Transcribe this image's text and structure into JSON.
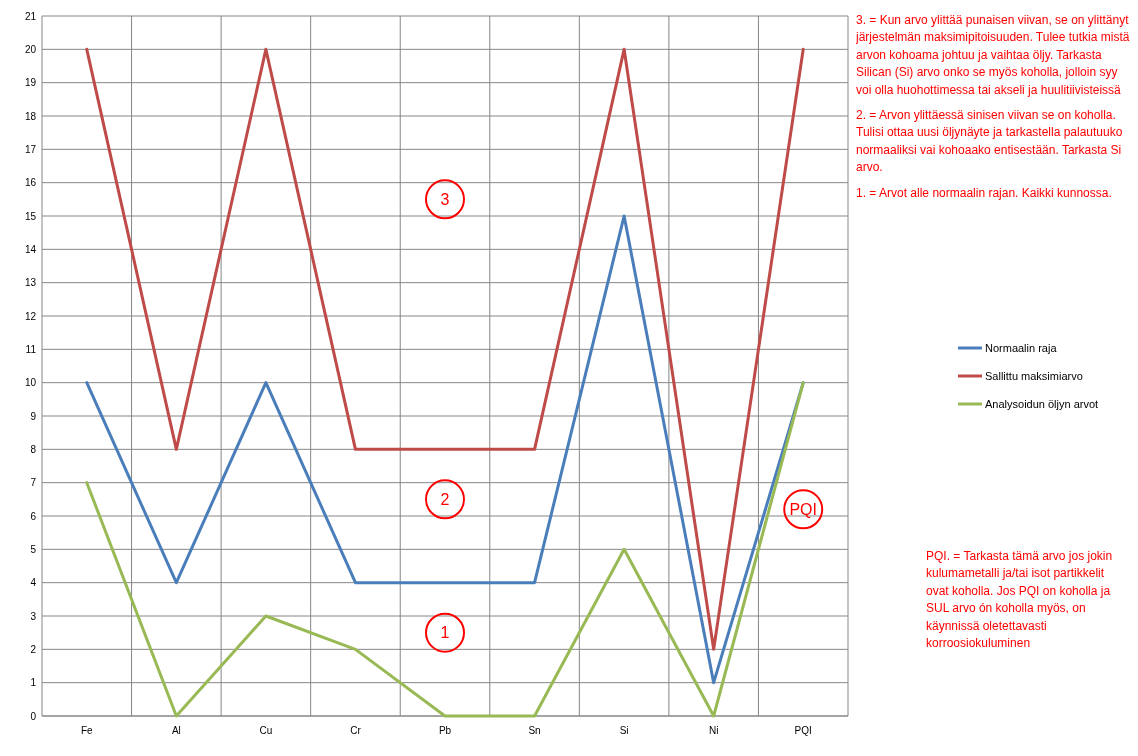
{
  "chart_data": {
    "type": "line",
    "categories": [
      "Fe",
      "Al",
      "Cu",
      "Cr",
      "Pb",
      "Sn",
      "Si",
      "Ni",
      "PQI"
    ],
    "series": [
      {
        "name": "Normaalin raja",
        "color": "#4a7ebb",
        "values": [
          10,
          4,
          10,
          4,
          4,
          4,
          15,
          1,
          10
        ]
      },
      {
        "name": "Sallittu maksimiarvo",
        "color": "#be4b48",
        "values": [
          20,
          8,
          20,
          8,
          8,
          8,
          20,
          2,
          20
        ]
      },
      {
        "name": "Analysoidun öljyn arvot",
        "color": "#98b954",
        "values": [
          7,
          0,
          3,
          2,
          0,
          0,
          5,
          0,
          10
        ]
      }
    ],
    "ylim": [
      0,
      21
    ],
    "yticks": [
      0,
      1,
      2,
      3,
      4,
      5,
      6,
      7,
      8,
      9,
      10,
      11,
      12,
      13,
      14,
      15,
      16,
      17,
      18,
      19,
      20,
      21
    ],
    "grid": true,
    "legend": "right",
    "marker": "none",
    "line_style": "solid",
    "annotations": [
      {
        "text": "3",
        "x": "Pb",
        "y": 15.5
      },
      {
        "text": "2",
        "x": "Pb",
        "y": 6.5
      },
      {
        "text": "1",
        "x": "Pb",
        "y": 2.5
      },
      {
        "text": "PQI",
        "x": "PQI",
        "y": 6.2
      },
      "3. = Kun arvo ylittää  punaisen viivan, se on ylittänyt järjestelmän maksimipitoisuuden. Tulee tutkia mistä arvon kohoama johtuu ja vaihtaa öljy. Tarkasta Silican  (Si) arvo onko se myös koholla, jolloin syy voi olla huohottimessa tai akseli ja huulitiivisteissä",
      "2. = Arvon ylittäessä sinisen viivan se on koholla. Tulisi ottaa uusi öljynäyte ja tarkastella palautuuko normaaliksi vai kohoaako entisestään. Tarkasta Si arvo.",
      "1. = Arvot alle  normaalin rajan. Kaikki kunnossa.",
      "PQI. = Tarkasta tämä arvo jos jokin kulumametalli ja/tai isot partikkelit ovat koholla. Jos PQI on koholla ja SUL arvo ón koholla myös, on käynnissä oletettavasti korroosiokuluminen"
    ]
  }
}
